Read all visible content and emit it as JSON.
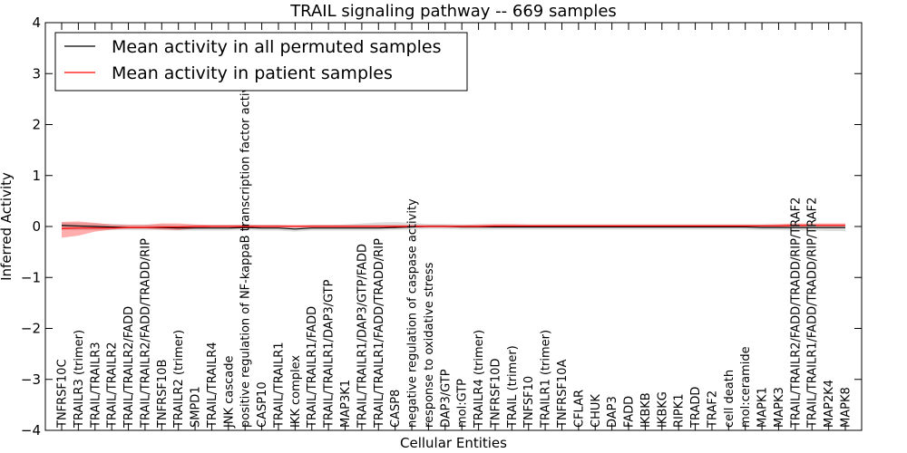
{
  "chart_data": {
    "type": "line",
    "title": "TRAIL signaling pathway -- 669 samples",
    "xlabel": "Cellular Entities",
    "ylabel": "Inferred Activity",
    "ylim": [
      -4,
      4
    ],
    "yticks": [
      4,
      3,
      2,
      1,
      0,
      -1,
      -2,
      -3,
      -4
    ],
    "ytick_labels": [
      "4",
      "3",
      "2",
      "1",
      "0",
      "−1",
      "−2",
      "−3",
      "−4"
    ],
    "grid": false,
    "legend_position": "top-left",
    "categories": [
      "TNFRSF10C",
      "TRAILR3 (trimer)",
      "TRAIL/TRAILR3",
      "TRAIL/TRAILR2",
      "TRAIL/TRAILR2/FADD",
      "TRAIL/TRAILR2/FADD/TRADD/RIP",
      "TNFRSF10B",
      "TRAILR2 (trimer)",
      "SMPD1",
      "TRAIL/TRAILR4",
      "JNK cascade",
      "positive regulation of NF-kappaB transcription factor activity",
      "CASP10",
      "TRAIL/TRAILR1",
      "IKK complex",
      "TRAIL/TRAILR1/FADD",
      "TRAIL/TRAILR1/DAP3/GTP",
      "MAP3K1",
      "TRAIL/TRAILR1/DAP3/GTP/FADD",
      "TRAIL/TRAILR1/FADD/TRADD/RIP",
      "CASP8",
      "negative regulation of caspase activity",
      "response to oxidative stress",
      "DAP3/GTP",
      "mol:GTP",
      "TRAILR4 (trimer)",
      "TNFRSF10D",
      "TRAIL (trimer)",
      "TNFSF10",
      "TRAILR1 (trimer)",
      "TNFRSF10A",
      "CFLAR",
      "CHUK",
      "DAP3",
      "FADD",
      "IKBKB",
      "IKBKG",
      "RIPK1",
      "TRADD",
      "TRAF2",
      "cell death",
      "mol:ceramide",
      "MAPK1",
      "MAPK3",
      "TRAIL/TRAILR2/FADD/TRADD/RIP/TRAF2",
      "TRAIL/TRAILR1/FADD/TRADD/RIP/TRAF2",
      "MAP2K4",
      "MAPK8"
    ],
    "series": [
      {
        "name": "Mean activity in all permuted samples",
        "color": "#000000",
        "values": [
          0.02,
          0.01,
          0.0,
          -0.01,
          -0.02,
          -0.02,
          -0.02,
          -0.03,
          -0.03,
          -0.03,
          -0.03,
          -0.02,
          -0.03,
          -0.03,
          -0.05,
          -0.03,
          -0.03,
          -0.03,
          -0.03,
          -0.03,
          -0.02,
          -0.01,
          0.0,
          0.0,
          -0.01,
          -0.01,
          -0.01,
          -0.01,
          -0.01,
          -0.01,
          -0.01,
          -0.01,
          -0.01,
          -0.01,
          -0.01,
          -0.01,
          -0.01,
          -0.01,
          -0.01,
          -0.01,
          -0.01,
          -0.01,
          -0.02,
          -0.02,
          -0.02,
          -0.02,
          -0.02,
          -0.02
        ],
        "band_lower": [
          -0.06,
          -0.07,
          -0.07,
          -0.07,
          -0.07,
          -0.07,
          -0.07,
          -0.08,
          -0.08,
          -0.08,
          -0.08,
          -0.07,
          -0.08,
          -0.08,
          -0.1,
          -0.08,
          -0.08,
          -0.08,
          -0.08,
          -0.08,
          -0.07,
          -0.06,
          -0.05,
          -0.05,
          -0.06,
          -0.06,
          -0.06,
          -0.06,
          -0.06,
          -0.06,
          -0.06,
          -0.06,
          -0.06,
          -0.06,
          -0.06,
          -0.06,
          -0.06,
          -0.06,
          -0.06,
          -0.06,
          -0.06,
          -0.06,
          -0.07,
          -0.07,
          -0.08,
          -0.08,
          -0.09,
          -0.09
        ],
        "band_upper": [
          0.08,
          0.07,
          0.06,
          0.05,
          0.04,
          0.04,
          0.04,
          0.03,
          0.03,
          0.03,
          0.03,
          0.04,
          0.03,
          0.03,
          0.01,
          0.03,
          0.03,
          0.04,
          0.06,
          0.08,
          0.09,
          0.07,
          0.05,
          0.05,
          0.04,
          0.04,
          0.04,
          0.04,
          0.04,
          0.04,
          0.04,
          0.04,
          0.04,
          0.04,
          0.04,
          0.04,
          0.04,
          0.04,
          0.04,
          0.04,
          0.04,
          0.04,
          0.04,
          0.04,
          0.04,
          0.04,
          0.04,
          0.04
        ]
      },
      {
        "name": "Mean activity in patient samples",
        "color": "#ff0000",
        "values": [
          -0.04,
          -0.03,
          -0.03,
          -0.03,
          -0.02,
          -0.02,
          -0.01,
          -0.01,
          0.0,
          0.0,
          0.0,
          0.0,
          0.0,
          0.0,
          0.0,
          0.0,
          0.0,
          0.0,
          0.0,
          0.0,
          0.0,
          0.0,
          0.0,
          0.0,
          0.0,
          0.0,
          0.01,
          0.01,
          0.01,
          0.01,
          0.01,
          0.01,
          0.01,
          0.01,
          0.01,
          0.01,
          0.01,
          0.01,
          0.01,
          0.01,
          0.01,
          0.01,
          0.01,
          0.01,
          0.02,
          0.02,
          0.02,
          0.02
        ],
        "band_lower": [
          -0.22,
          -0.18,
          -0.1,
          -0.06,
          -0.04,
          -0.04,
          -0.06,
          -0.07,
          -0.04,
          -0.01,
          -0.01,
          -0.01,
          -0.01,
          -0.01,
          -0.01,
          -0.01,
          -0.01,
          -0.01,
          -0.01,
          -0.01,
          -0.01,
          -0.01,
          -0.01,
          -0.01,
          -0.01,
          -0.01,
          -0.01,
          -0.01,
          0.0,
          0.0,
          0.0,
          0.0,
          0.0,
          0.0,
          0.0,
          0.0,
          0.0,
          0.0,
          0.0,
          0.0,
          0.0,
          0.0,
          0.0,
          0.0,
          0.0,
          0.01,
          0.01,
          0.01
        ],
        "band_upper": [
          0.09,
          0.1,
          0.07,
          0.04,
          0.03,
          0.03,
          0.06,
          0.06,
          0.04,
          0.03,
          0.03,
          0.03,
          0.03,
          0.03,
          0.03,
          0.03,
          0.03,
          0.03,
          0.03,
          0.03,
          0.03,
          0.03,
          0.03,
          0.03,
          0.03,
          0.04,
          0.05,
          0.05,
          0.04,
          0.04,
          0.04,
          0.04,
          0.04,
          0.04,
          0.04,
          0.04,
          0.04,
          0.04,
          0.04,
          0.04,
          0.04,
          0.04,
          0.04,
          0.05,
          0.06,
          0.06,
          0.06,
          0.06
        ]
      }
    ]
  }
}
